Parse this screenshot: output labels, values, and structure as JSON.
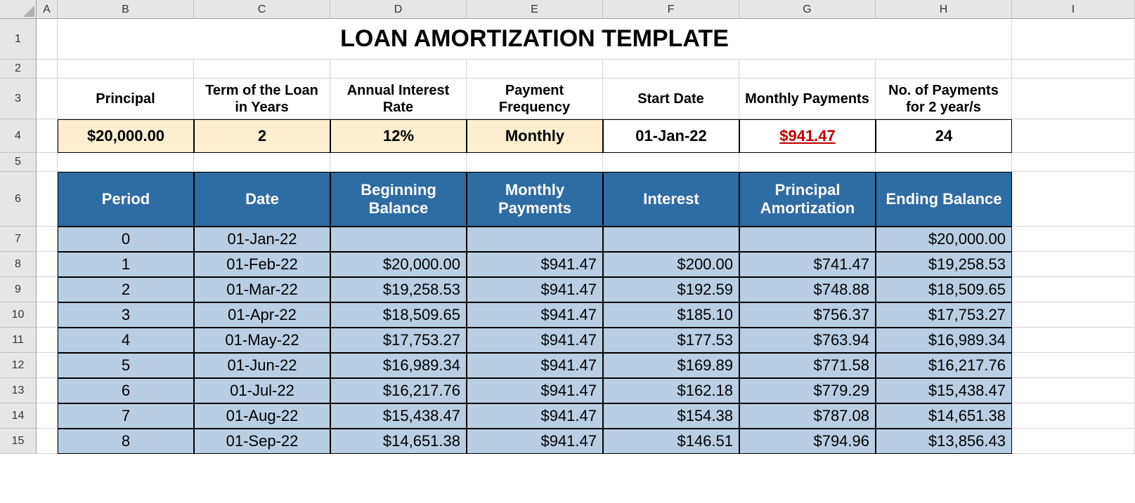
{
  "columns": {
    "letters": [
      "A",
      "B",
      "C",
      "D",
      "E",
      "F",
      "G",
      "H",
      "I"
    ],
    "widths": [
      30,
      194,
      194,
      194,
      194,
      194,
      194,
      194,
      175
    ],
    "row_header_width": 52,
    "col_header_height": 27
  },
  "rows": {
    "numbers": [
      "1",
      "2",
      "3",
      "4",
      "5",
      "6",
      "7",
      "8",
      "9",
      "10",
      "11",
      "12",
      "13",
      "14",
      "15"
    ],
    "heights": [
      58,
      27,
      58,
      48,
      27,
      78,
      36,
      36,
      36,
      36,
      36,
      36,
      36,
      36,
      36
    ]
  },
  "title": "LOAN AMORTIZATION TEMPLATE",
  "title_fontsize": 34,
  "hidden_center_text": "12",
  "params": {
    "headers": [
      "Principal",
      "Term of the Loan in Years",
      "Annual Interest Rate",
      "Payment Frequency",
      "Start Date",
      "Monthly Payments",
      "No. of Payments for 2 year/s"
    ],
    "values": [
      "$20,000.00",
      "2",
      "12%",
      "Monthly",
      "01-Jan-22",
      "$941.47",
      "24"
    ],
    "yellow_flags": [
      true,
      true,
      true,
      true,
      false,
      false,
      false
    ],
    "red_underline_flags": [
      false,
      false,
      false,
      false,
      false,
      true,
      false
    ],
    "bg_yellow": "#fdeecf",
    "bg_white": "#ffffff",
    "red_color": "#c00000"
  },
  "table": {
    "header_bg": "#2e6ca4",
    "header_fg": "#ffffff",
    "row_bg": "#b8cee4",
    "border_color": "#000000",
    "headers": [
      "Period",
      "Date",
      "Beginning Balance",
      "Monthly Payments",
      "Interest",
      "Principal Amortization",
      "Ending Balance"
    ],
    "align": [
      "center",
      "center",
      "right",
      "right",
      "right",
      "right",
      "right"
    ],
    "rows": [
      [
        "0",
        "01-Jan-22",
        "",
        "",
        "",
        "",
        "$20,000.00"
      ],
      [
        "1",
        "01-Feb-22",
        "$20,000.00",
        "$941.47",
        "$200.00",
        "$741.47",
        "$19,258.53"
      ],
      [
        "2",
        "01-Mar-22",
        "$19,258.53",
        "$941.47",
        "$192.59",
        "$748.88",
        "$18,509.65"
      ],
      [
        "3",
        "01-Apr-22",
        "$18,509.65",
        "$941.47",
        "$185.10",
        "$756.37",
        "$17,753.27"
      ],
      [
        "4",
        "01-May-22",
        "$17,753.27",
        "$941.47",
        "$177.53",
        "$763.94",
        "$16,989.34"
      ],
      [
        "5",
        "01-Jun-22",
        "$16,989.34",
        "$941.47",
        "$169.89",
        "$771.58",
        "$16,217.76"
      ],
      [
        "6",
        "01-Jul-22",
        "$16,217.76",
        "$941.47",
        "$162.18",
        "$779.29",
        "$15,438.47"
      ],
      [
        "7",
        "01-Aug-22",
        "$15,438.47",
        "$941.47",
        "$154.38",
        "$787.08",
        "$14,651.38"
      ],
      [
        "8",
        "01-Sep-22",
        "$14,651.38",
        "$941.47",
        "$146.51",
        "$794.96",
        "$13,856.43"
      ]
    ]
  },
  "colors": {
    "grid_header_bg": "#e6e6e6",
    "grid_line": "#d4d4d4",
    "grid_header_line": "#c0c0c0"
  }
}
